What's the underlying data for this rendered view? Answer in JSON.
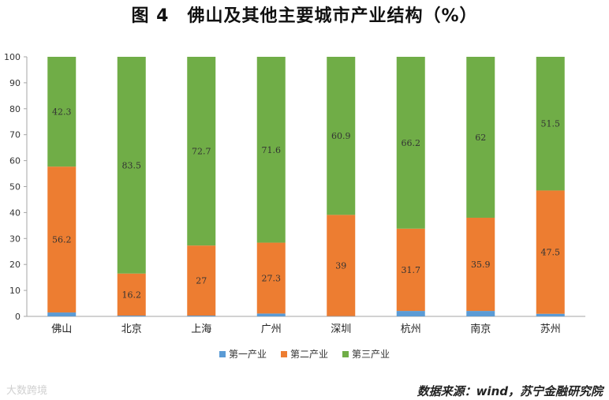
{
  "title": "图 4　佛山及其他主要城市产业结构（%）",
  "source": "数据来源：wind，苏宁金融研究院",
  "watermark": "大数跨境",
  "colors": {
    "primary": "#5b9bd5",
    "secondary": "#ed7d31",
    "tertiary": "#70ad47"
  },
  "chart_data": {
    "type": "bar",
    "stacked": true,
    "categories": [
      "佛山",
      "北京",
      "上海",
      "广州",
      "深圳",
      "杭州",
      "南京",
      "苏州"
    ],
    "series": [
      {
        "name": "第一产业",
        "values": [
          1.5,
          0.3,
          0.3,
          1.1,
          0.1,
          2.1,
          2.1,
          1.0
        ],
        "labels": [
          "",
          "",
          "",
          "",
          "",
          "",
          "",
          ""
        ]
      },
      {
        "name": "第二产业",
        "values": [
          56.2,
          16.2,
          27,
          27.3,
          39,
          31.7,
          35.9,
          47.5
        ],
        "labels": [
          "56.2",
          "16.2",
          "27",
          "27.3",
          "39",
          "31.7",
          "35.9",
          "47.5"
        ]
      },
      {
        "name": "第三产业",
        "values": [
          42.3,
          83.5,
          72.7,
          71.6,
          60.9,
          66.2,
          62,
          51.5
        ],
        "labels": [
          "42.3",
          "83.5",
          "72.7",
          "71.6",
          "60.9",
          "66.2",
          "62",
          "51.5"
        ]
      }
    ],
    "ylim": [
      0,
      100
    ],
    "yticks": [
      "0",
      "10",
      "20",
      "30",
      "40",
      "50",
      "60",
      "70",
      "80",
      "90",
      "100"
    ],
    "grid": false,
    "legend_position": "bottom"
  }
}
